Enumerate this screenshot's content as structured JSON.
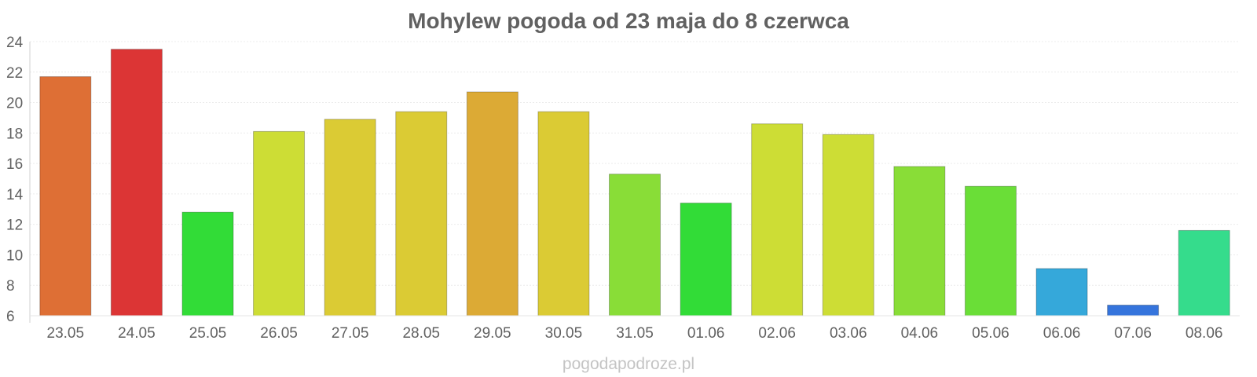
{
  "chart_data": {
    "type": "bar",
    "title": "Mohylew pogoda od 23 maja do 8 czerwca",
    "xlabel": "",
    "ylabel": "",
    "categories": [
      "23.05",
      "24.05",
      "25.05",
      "26.05",
      "27.05",
      "28.05",
      "29.05",
      "30.05",
      "31.05",
      "01.06",
      "02.06",
      "03.06",
      "04.06",
      "05.06",
      "06.06",
      "07.06",
      "08.06"
    ],
    "values": [
      21.7,
      23.5,
      12.8,
      18.1,
      18.9,
      19.4,
      20.7,
      19.4,
      15.3,
      13.4,
      18.6,
      17.9,
      15.8,
      14.5,
      9.1,
      6.7,
      11.6
    ],
    "colors": [
      "#de6f35",
      "#dc3535",
      "#32dc37",
      "#cddd35",
      "#dbcb34",
      "#dbcb34",
      "#dcaa35",
      "#dbcb34",
      "#89dd37",
      "#32dc37",
      "#cddd35",
      "#cddd35",
      "#89dd37",
      "#6ade37",
      "#35a8da",
      "#3574dc",
      "#35dc8c"
    ],
    "ylim": [
      6,
      24
    ],
    "yticks": [
      "6",
      "8",
      "10",
      "12",
      "14",
      "16",
      "18",
      "20",
      "22",
      "24"
    ],
    "grid": true,
    "legend": "none"
  },
  "watermark": "pogodapodroze.pl"
}
